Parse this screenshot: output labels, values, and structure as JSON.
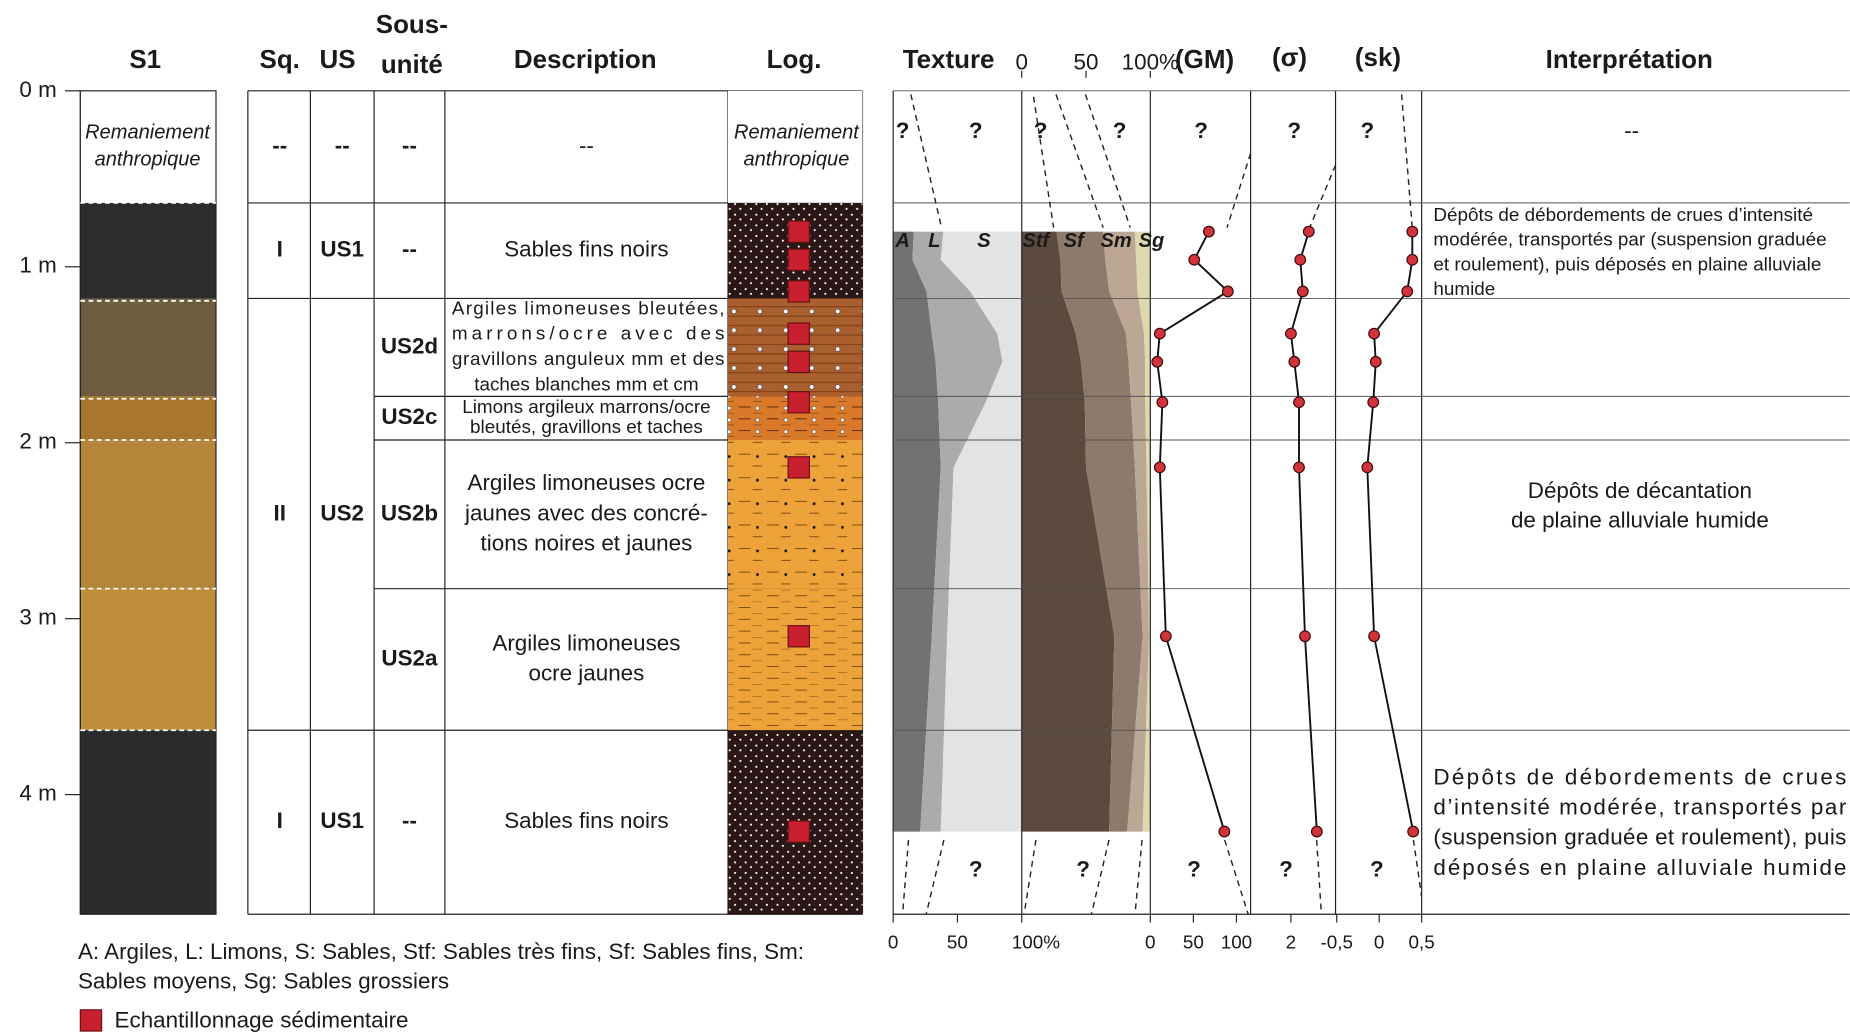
{
  "header": {
    "s1": "S1",
    "sq": "Sq.",
    "us": "US",
    "sub": [
      "Sous-",
      "unité"
    ],
    "description": "Description",
    "log": "Log.",
    "texture": "Texture",
    "gm": "(GM)",
    "sigma": "(σ)",
    "sk": "(sk)",
    "interpretation": "Interprétation"
  },
  "depth_axis": {
    "ylim": [
      0,
      4.68
    ],
    "ticks": [
      {
        "value": 0,
        "label": "0 m"
      },
      {
        "value": 1,
        "label": "1 m"
      },
      {
        "value": 2,
        "label": "2 m"
      },
      {
        "value": 3,
        "label": "3 m"
      },
      {
        "value": 4,
        "label": "4 m"
      }
    ]
  },
  "s1_top_label": [
    "Remaniement",
    "anthropique"
  ],
  "log_top_label": [
    "Remaniement",
    "anthropique"
  ],
  "table": {
    "rows": [
      {
        "sq": "--",
        "us": "--",
        "sub": "--",
        "description": [
          "--"
        ]
      },
      {
        "sq": "I",
        "us": "US1",
        "sub": "--",
        "description": [
          "Sables fins noirs"
        ]
      },
      {
        "sq": "II",
        "us": "US2",
        "sub": "US2d",
        "description": [
          "Argiles limoneuses bleutées,",
          "marrons/ocre avec des",
          "gravillons anguleux mm et des",
          "taches blanches mm et cm"
        ]
      },
      {
        "sub": "US2c",
        "description": [
          "Limons argileux marrons/ocre",
          "bleutés, gravillons et taches"
        ]
      },
      {
        "sub": "US2b",
        "description": [
          "Argiles limoneuses ocre",
          "jaunes avec des concré-",
          "tions noires et jaunes"
        ]
      },
      {
        "sub": "US2a",
        "description": [
          "Argiles limoneuses",
          "ocre jaunes"
        ]
      },
      {
        "sq": "I",
        "us": "US1",
        "sub": "--",
        "description": [
          "Sables fins noirs"
        ]
      }
    ]
  },
  "interpretation": [
    {
      "lines": [
        "--"
      ]
    },
    {
      "lines": [
        "Dépôts de débordements de crues d’intensité",
        "modérée, transportés par (suspension graduée",
        "et roulement), puis déposés en plaine alluviale",
        "humide"
      ]
    },
    {
      "lines": [
        "Dépôts de décantation",
        "de plaine alluviale humide"
      ]
    },
    {
      "lines": [
        "Dépôts de débordements de crues",
        "d’intensité modérée, transportés par",
        "(suspension graduée et roulement), puis",
        "déposés en plaine alluviale humide"
      ]
    }
  ],
  "texture_labels": {
    "A": "A",
    "L": "L",
    "S": "S",
    "Stf": "Stf",
    "Sf": "Sf",
    "Sm": "Sm",
    "Sg": "Sg"
  },
  "axes": {
    "texture_top": {
      "xlim": [
        0,
        100
      ],
      "ticks": [
        0,
        50,
        {
          "value": 100,
          "label": "100%"
        }
      ]
    },
    "texture": {
      "xlim": [
        0,
        100
      ],
      "ticks": [
        0,
        50,
        {
          "value": 100,
          "label": "100%"
        }
      ]
    },
    "gm": {
      "xlim": [
        0,
        100
      ],
      "ticks": [
        0,
        50,
        100
      ]
    },
    "sigma": {
      "xlim": [
        1.05,
        3.05
      ],
      "ticks": [
        2
      ]
    },
    "sk": {
      "xlim": [
        -0.5,
        0.5
      ],
      "ticks": [
        {
          "value": -0.5,
          "label": "-0,5"
        },
        0,
        {
          "value": 0.5,
          "label": "0,5"
        }
      ]
    }
  },
  "samples": {
    "depth": [
      0.8,
      0.96,
      1.14,
      1.38,
      1.54,
      1.77,
      2.14,
      3.1,
      4.21
    ],
    "A": [
      16,
      15,
      26,
      30,
      33,
      35,
      37,
      30,
      21
    ],
    "L": [
      23,
      22,
      34,
      51,
      52,
      37,
      10,
      12,
      16
    ],
    "S": [
      61,
      63,
      40,
      19,
      15,
      28,
      53,
      58,
      63
    ],
    "Stf": [
      27,
      30,
      31,
      42,
      46,
      49,
      50,
      72,
      68
    ],
    "Sf": [
      36,
      35,
      37,
      39,
      37,
      36,
      38,
      22,
      14
    ],
    "Sm": [
      25,
      24,
      22,
      14,
      13,
      11,
      9,
      5,
      12
    ],
    "Sg": [
      12,
      11,
      10,
      5,
      4,
      4,
      3,
      1,
      6
    ],
    "GM": [
      68,
      51,
      90,
      11,
      8,
      14,
      11,
      18,
      86
    ],
    "sigma": [
      2.42,
      2.22,
      2.28,
      2.0,
      2.08,
      2.19,
      2.19,
      2.33,
      2.61
    ],
    "sk": [
      0.39,
      0.39,
      0.33,
      -0.06,
      -0.04,
      -0.07,
      -0.14,
      -0.06,
      0.4
    ]
  },
  "question_marks": [
    "?",
    "?",
    "?",
    "?",
    "?",
    "?",
    "?",
    "?",
    "?",
    "?",
    "?",
    "?"
  ],
  "legend": {
    "abbreviations": [
      "A: Argiles, L: Limons, S: Sables, Stf: Sables très fins, Sf: Sables fins, Sm:",
      "Sables moyens, Sg: Sables grossiers"
    ],
    "sample": "Echantillonnage sédimentaire"
  }
}
